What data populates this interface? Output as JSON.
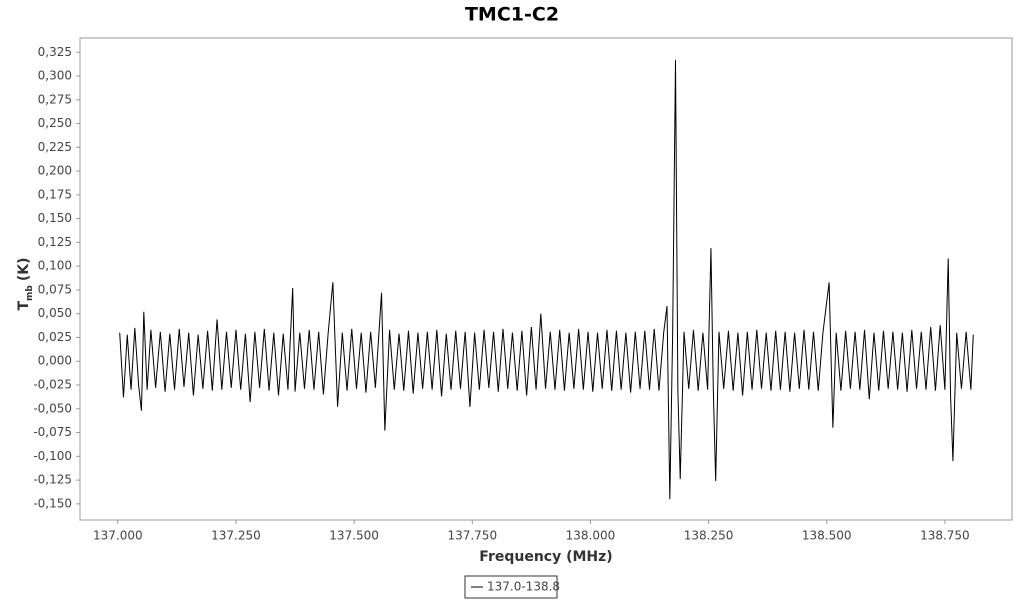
{
  "chart_data": {
    "type": "line",
    "title": "TMC1-C2",
    "x_label": "Frequency (MHz)",
    "y_label": "T",
    "y_label_sub": "mb",
    "y_label_unit": "(K)",
    "legend": "bottom",
    "grid": false,
    "xlim": [
      136.92,
      138.892
    ],
    "ylim": [
      -0.167,
      0.34
    ],
    "xticks": [
      {
        "value": 137.0,
        "label": "137.000"
      },
      {
        "value": 137.25,
        "label": "137.250"
      },
      {
        "value": 137.5,
        "label": "137.500"
      },
      {
        "value": 137.75,
        "label": "137.750"
      },
      {
        "value": 138.0,
        "label": "138.000"
      },
      {
        "value": 138.25,
        "label": "138.250"
      },
      {
        "value": 138.5,
        "label": "138.500"
      },
      {
        "value": 138.75,
        "label": "138.750"
      }
    ],
    "yticks": [
      {
        "value": -0.15,
        "label": "-0,150"
      },
      {
        "value": -0.125,
        "label": "-0,125"
      },
      {
        "value": -0.1,
        "label": "-0,100"
      },
      {
        "value": -0.075,
        "label": "-0,075"
      },
      {
        "value": -0.05,
        "label": "-0,050"
      },
      {
        "value": -0.025,
        "label": "-0,025"
      },
      {
        "value": 0,
        "label": "0,000"
      },
      {
        "value": 0.025,
        "label": "0,025"
      },
      {
        "value": 0.05,
        "label": "0,050"
      },
      {
        "value": 0.075,
        "label": "0,075"
      },
      {
        "value": 0.1,
        "label": "0,100"
      },
      {
        "value": 0.125,
        "label": "0,125"
      },
      {
        "value": 0.15,
        "label": "0,150"
      },
      {
        "value": 0.175,
        "label": "0,175"
      },
      {
        "value": 0.2,
        "label": "0,200"
      },
      {
        "value": 0.225,
        "label": "0,225"
      },
      {
        "value": 0.25,
        "label": "0,250"
      },
      {
        "value": 0.275,
        "label": "0,275"
      },
      {
        "value": 0.3,
        "label": "0,300"
      },
      {
        "value": 0.325,
        "label": "0,325"
      }
    ],
    "x": [
      137.004,
      137.012,
      137.02,
      137.028,
      137.036,
      137.044,
      137.05,
      137.055,
      137.062,
      137.07,
      137.08,
      137.09,
      137.1,
      137.11,
      137.12,
      137.13,
      137.14,
      137.15,
      137.16,
      137.17,
      137.18,
      137.19,
      137.2,
      137.21,
      137.22,
      137.23,
      137.24,
      137.25,
      137.26,
      137.27,
      137.28,
      137.29,
      137.3,
      137.31,
      137.32,
      137.33,
      137.34,
      137.35,
      137.36,
      137.37,
      137.375,
      137.385,
      137.395,
      137.405,
      137.415,
      137.425,
      137.435,
      137.445,
      137.455,
      137.465,
      137.475,
      137.485,
      137.495,
      137.505,
      137.515,
      137.525,
      137.535,
      137.545,
      137.558,
      137.565,
      137.575,
      137.585,
      137.595,
      137.605,
      137.615,
      137.625,
      137.635,
      137.645,
      137.655,
      137.665,
      137.675,
      137.685,
      137.695,
      137.705,
      137.715,
      137.725,
      137.735,
      137.745,
      137.755,
      137.765,
      137.775,
      137.785,
      137.795,
      137.805,
      137.815,
      137.825,
      137.835,
      137.845,
      137.855,
      137.865,
      137.875,
      137.885,
      137.895,
      137.905,
      137.915,
      137.925,
      137.935,
      137.945,
      137.955,
      137.965,
      137.975,
      137.985,
      137.995,
      138.005,
      138.015,
      138.025,
      138.035,
      138.045,
      138.055,
      138.065,
      138.075,
      138.085,
      138.095,
      138.105,
      138.115,
      138.125,
      138.135,
      138.145,
      138.155,
      138.162,
      138.168,
      138.174,
      138.18,
      138.185,
      138.19,
      138.198,
      138.208,
      138.218,
      138.228,
      138.238,
      138.248,
      138.255,
      138.26,
      138.265,
      138.272,
      138.282,
      138.292,
      138.302,
      138.312,
      138.322,
      138.332,
      138.342,
      138.352,
      138.362,
      138.372,
      138.382,
      138.392,
      138.402,
      138.412,
      138.422,
      138.432,
      138.442,
      138.452,
      138.462,
      138.472,
      138.482,
      138.492,
      138.505,
      138.513,
      138.52,
      138.53,
      138.54,
      138.55,
      138.56,
      138.57,
      138.58,
      138.59,
      138.6,
      138.61,
      138.62,
      138.63,
      138.64,
      138.65,
      138.66,
      138.67,
      138.68,
      138.69,
      138.7,
      138.71,
      138.72,
      138.73,
      138.74,
      138.75,
      138.757,
      138.762,
      138.767,
      138.775,
      138.785,
      138.795,
      138.805,
      138.81
    ],
    "series": [
      {
        "name": "137.0-138.8",
        "color": "#000000",
        "values": [
          0.03,
          -0.038,
          0.028,
          -0.03,
          0.035,
          -0.025,
          -0.052,
          0.052,
          -0.03,
          0.033,
          -0.028,
          0.031,
          -0.032,
          0.029,
          -0.03,
          0.034,
          -0.027,
          0.03,
          -0.036,
          0.028,
          -0.029,
          0.032,
          -0.031,
          0.044,
          -0.03,
          0.031,
          -0.028,
          0.033,
          -0.03,
          0.029,
          -0.043,
          0.031,
          -0.028,
          0.034,
          -0.031,
          0.03,
          -0.036,
          0.029,
          -0.03,
          0.077,
          -0.032,
          0.03,
          -0.029,
          0.033,
          -0.03,
          0.031,
          -0.035,
          0.029,
          0.083,
          -0.048,
          0.03,
          -0.031,
          0.034,
          -0.029,
          0.03,
          -0.033,
          0.031,
          -0.028,
          0.072,
          -0.073,
          0.033,
          -0.03,
          0.029,
          -0.031,
          0.032,
          -0.034,
          0.03,
          -0.029,
          0.031,
          -0.03,
          0.033,
          -0.037,
          0.029,
          -0.03,
          0.032,
          -0.029,
          0.031,
          -0.048,
          0.03,
          -0.03,
          0.033,
          -0.028,
          0.031,
          -0.032,
          0.034,
          -0.029,
          0.03,
          -0.031,
          0.032,
          -0.036,
          0.036,
          -0.03,
          0.05,
          -0.029,
          0.031,
          -0.03,
          0.033,
          -0.031,
          0.03,
          -0.029,
          0.034,
          -0.03,
          0.031,
          -0.032,
          0.03,
          -0.029,
          0.033,
          -0.031,
          0.032,
          -0.03,
          0.03,
          -0.033,
          0.031,
          -0.029,
          0.032,
          -0.03,
          0.034,
          -0.031,
          0.03,
          0.058,
          -0.145,
          0.03,
          0.317,
          -0.03,
          -0.124,
          0.031,
          -0.029,
          0.033,
          -0.031,
          0.03,
          -0.03,
          0.119,
          -0.03,
          -0.126,
          0.031,
          -0.029,
          0.032,
          -0.031,
          0.03,
          -0.036,
          0.031,
          -0.03,
          0.033,
          -0.029,
          0.03,
          -0.031,
          0.032,
          -0.03,
          0.031,
          -0.032,
          0.03,
          -0.029,
          0.033,
          -0.03,
          0.031,
          -0.031,
          0.03,
          0.083,
          -0.07,
          0.03,
          -0.031,
          0.032,
          -0.029,
          0.031,
          -0.03,
          0.033,
          -0.04,
          0.03,
          -0.031,
          0.032,
          -0.029,
          0.031,
          -0.03,
          0.03,
          -0.032,
          0.033,
          -0.029,
          0.031,
          -0.03,
          0.036,
          -0.031,
          0.038,
          -0.03,
          0.108,
          -0.036,
          -0.105,
          0.03,
          -0.029,
          0.031,
          -0.03,
          0.028
        ]
      }
    ]
  }
}
